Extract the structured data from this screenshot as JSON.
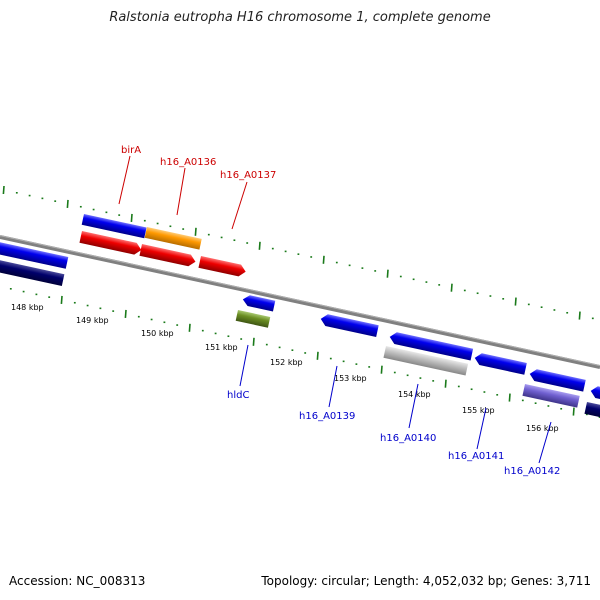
{
  "title": "Ralstonia eutropha H16 chromosome 1, complete genome",
  "footer": {
    "accession": "Accession: NC_008313",
    "topology": "Topology: circular; Length: 4,052,032 bp; Genes: 3,711"
  },
  "colors": {
    "backbone": "#808080",
    "tick": "#1a7a1a",
    "label_top": "#cc0000",
    "label_bottom": "#0000cc",
    "blue": "#0000ee",
    "navy": "#00006b",
    "red": "#ee0000",
    "orange": "#ff9900",
    "olive": "#6b8e23",
    "lightgray": "#c0c0c0",
    "slate": "#7060d0"
  },
  "kbp_labels": [
    "148 kbp",
    "149 kbp",
    "150 kbp",
    "151 kbp",
    "152 kbp",
    "153 kbp",
    "154 kbp",
    "155 kbp",
    "156 kbp"
  ],
  "gene_labels_top": [
    "birA",
    "h16_A0136",
    "h16_A0137"
  ],
  "gene_labels_bottom": [
    "hldC",
    "h16_A0139",
    "h16_A0140",
    "h16_A0141",
    "h16_A0142"
  ]
}
